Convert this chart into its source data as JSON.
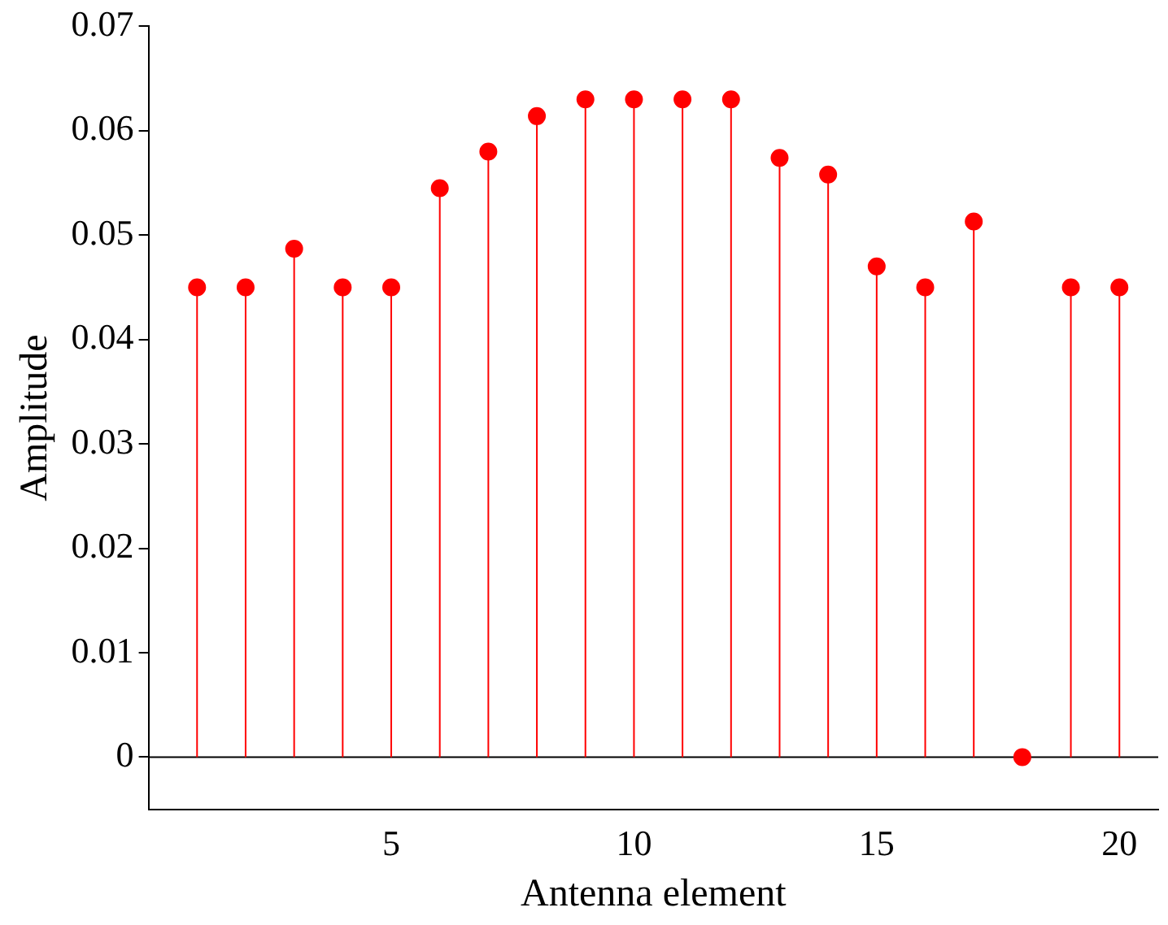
{
  "chart_data": {
    "type": "lollipop",
    "xlabel": "Antenna element",
    "ylabel": "Amplitude",
    "x": [
      1,
      2,
      3,
      4,
      5,
      6,
      7,
      8,
      9,
      10,
      11,
      12,
      13,
      14,
      15,
      16,
      17,
      18,
      19,
      20
    ],
    "series": [
      {
        "color": "#ff0000",
        "values": [
          0.045,
          0.045,
          0.0487,
          0.045,
          0.045,
          0.0545,
          0.058,
          0.0614,
          0.063,
          0.063,
          0.063,
          0.063,
          0.0574,
          0.0558,
          0.047,
          0.045,
          0.0513,
          0,
          0.045,
          0.045
        ]
      }
    ],
    "xlim": [
      0,
      20.8
    ],
    "ylim": [
      -0.005,
      0.07
    ],
    "xticks": [
      5,
      10,
      15,
      20
    ],
    "yticks": [
      0,
      0.01,
      0.02,
      0.03,
      0.04,
      0.05,
      0.06,
      0.07
    ],
    "marker": "circle",
    "grid": false,
    "legend": false,
    "ref_lines": [
      {
        "axis": "y",
        "value": 0,
        "color": "#000000"
      }
    ]
  }
}
